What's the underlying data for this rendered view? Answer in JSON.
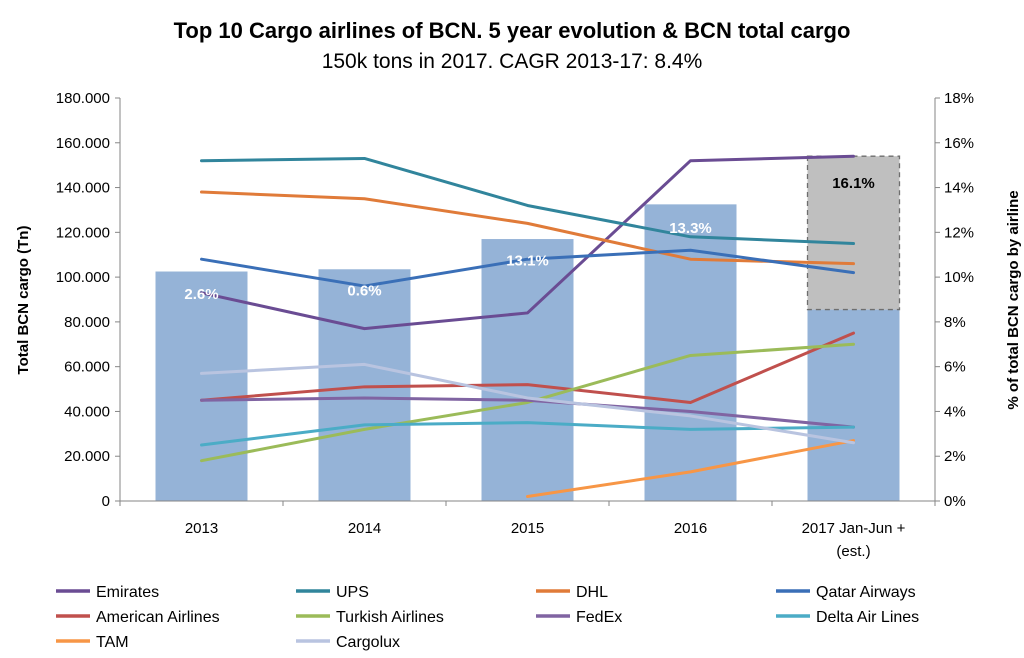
{
  "title": "Top 10 Cargo airlines of BCN. 5 year evolution & BCN total cargo",
  "subtitle": "150k tons in 2017. CAGR 2013-17: 8.4%",
  "chart_data": {
    "type": "bar+line",
    "categories": [
      "2013",
      "2014",
      "2015",
      "2016",
      "2017 Jan-Jun + (est.)"
    ],
    "category_lines": [
      [
        "2013"
      ],
      [
        "2014"
      ],
      [
        "2015"
      ],
      [
        "2016"
      ],
      [
        "2017 Jan-Jun +",
        "(est.)"
      ]
    ],
    "bar_series": {
      "values": [
        102500,
        103500,
        117000,
        132500,
        85500
      ],
      "color": "#95b3d7"
    },
    "estimate_box": {
      "category": "2017 Jan-Jun + (est.)",
      "bottom": 85500,
      "top": 154000,
      "label": "16.1%",
      "color": "#bfbfbf"
    },
    "bar_labels": [
      {
        "category": "2013",
        "text": "2.6%",
        "y": 92500
      },
      {
        "category": "2014",
        "text": "0.6%",
        "y": 94000
      },
      {
        "category": "2015",
        "text": "13.1%",
        "y": 107500
      },
      {
        "category": "2016",
        "text": "13.3%",
        "y": 122000
      }
    ],
    "ylabel": "Total BCN cargo (Tn)",
    "y2label": "% of total BCN cargo by airline",
    "ylim": [
      0,
      180000
    ],
    "y_ticks": [
      "0",
      "20.000",
      "40.000",
      "60.000",
      "80.000",
      "100.000",
      "120.000",
      "140.000",
      "160.000",
      "180.000"
    ],
    "y2lim": [
      0,
      18
    ],
    "y2_ticks": [
      "0%",
      "2%",
      "4%",
      "6%",
      "8%",
      "10%",
      "12%",
      "14%",
      "16%",
      "18%"
    ],
    "line_series": [
      {
        "name": "Emirates",
        "color": "#6a4c93",
        "values": [
          9.3,
          7.7,
          8.4,
          15.2,
          15.4
        ]
      },
      {
        "name": "UPS",
        "color": "#31859c",
        "values": [
          15.2,
          15.3,
          13.2,
          11.8,
          11.5
        ]
      },
      {
        "name": "DHL",
        "color": "#e07b39",
        "values": [
          13.8,
          13.5,
          12.4,
          10.8,
          10.6
        ]
      },
      {
        "name": "Qatar Airways",
        "color": "#3a6fb7",
        "values": [
          10.8,
          9.6,
          10.8,
          11.2,
          10.2
        ]
      },
      {
        "name": "American Airlines",
        "color": "#c0504d",
        "values": [
          4.5,
          5.1,
          5.2,
          4.4,
          7.5
        ]
      },
      {
        "name": "Turkish Airlines",
        "color": "#9bbb59",
        "values": [
          1.8,
          3.2,
          4.4,
          6.5,
          7.0
        ]
      },
      {
        "name": "FedEx",
        "color": "#8064a2",
        "values": [
          4.5,
          4.6,
          4.5,
          4.0,
          3.3
        ]
      },
      {
        "name": "Delta Air Lines",
        "color": "#4bacc6",
        "values": [
          2.5,
          3.4,
          3.5,
          3.2,
          3.3
        ]
      },
      {
        "name": "TAM",
        "color": "#f79646",
        "values": [
          null,
          null,
          0.2,
          1.3,
          2.7
        ]
      },
      {
        "name": "Cargolux",
        "color": "#b9c4e0",
        "values": [
          5.7,
          6.1,
          4.6,
          3.8,
          2.6
        ]
      }
    ],
    "legend_position": "bottom",
    "grid": false
  }
}
